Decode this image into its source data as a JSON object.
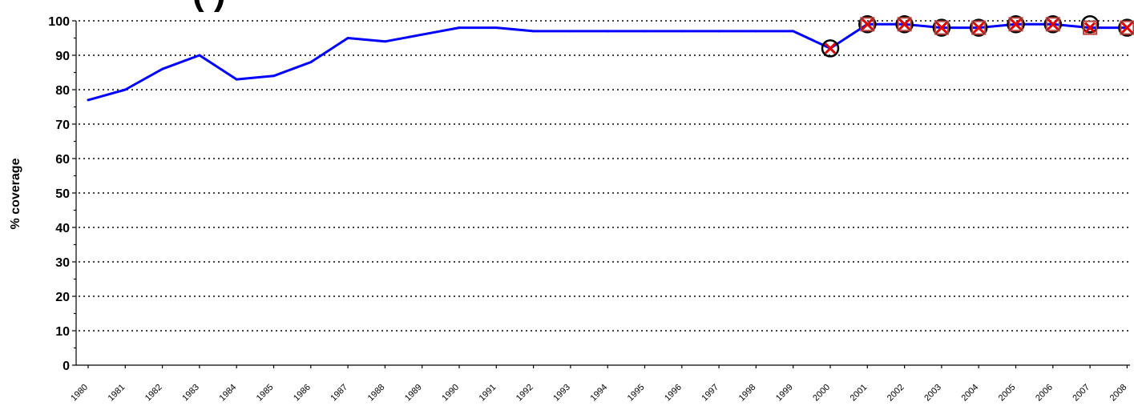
{
  "chart_data": {
    "type": "line",
    "title": "(      )",
    "ylabel": "% coverage",
    "xlabel": "",
    "ylim": [
      0,
      100
    ],
    "yticks": [
      0,
      10,
      20,
      30,
      40,
      50,
      60,
      70,
      80,
      90,
      100
    ],
    "grid": true,
    "x": [
      "1980",
      "1981",
      "1982",
      "1983",
      "1984",
      "1985",
      "1986",
      "1987",
      "1988",
      "1989",
      "1990",
      "1991",
      "1992",
      "1993",
      "1994",
      "1995",
      "1996",
      "1997",
      "1998",
      "1999",
      "2000",
      "2001",
      "2002",
      "2003",
      "2004",
      "2005",
      "2006",
      "2007",
      "2008"
    ],
    "series": [
      {
        "values": [
          77,
          80,
          86,
          90,
          83,
          84,
          88,
          95,
          94,
          96,
          98,
          98,
          97,
          97,
          97,
          97,
          97,
          97,
          97,
          97,
          92,
          99,
          99,
          98,
          98,
          99,
          99,
          98,
          98
        ],
        "color": "#0000ff"
      },
      {
        "marker": "circle",
        "color": "#000000",
        "x": [
          "2000",
          "2001",
          "2002",
          "2003",
          "2004",
          "2005",
          "2006",
          "2007",
          "2008"
        ],
        "values": [
          92,
          99,
          99,
          98,
          98,
          99,
          99,
          99,
          98
        ]
      },
      {
        "marker": "square",
        "color": "#b5413a",
        "x": [
          "2001",
          "2002",
          "2003",
          "2004",
          "2005",
          "2006",
          "2007",
          "2008"
        ],
        "values": [
          99,
          99,
          98,
          98,
          99,
          99,
          98,
          98
        ]
      },
      {
        "marker": "x",
        "color": "#e00000",
        "x": [
          "2000",
          "2001",
          "2002",
          "2003",
          "2004",
          "2005",
          "2006",
          "2007",
          "2008"
        ],
        "values": [
          92,
          99,
          99,
          98,
          98,
          99,
          99,
          98,
          98
        ]
      }
    ]
  }
}
